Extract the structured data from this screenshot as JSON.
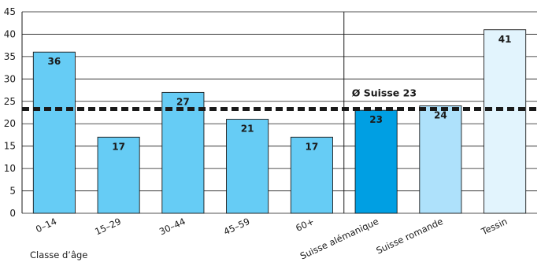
{
  "chart_data": {
    "type": "bar",
    "title": "",
    "ylabel": "",
    "xlabel": "Classe d’âge",
    "ylim": [
      0,
      45
    ],
    "yticks": [
      0,
      5,
      10,
      15,
      20,
      25,
      30,
      35,
      40,
      45
    ],
    "grid": "horizontal",
    "categories": [
      "0–14",
      "15–29",
      "30–44",
      "45–59",
      "60+",
      "Suisse alémanique",
      "Suisse romande",
      "Tessin"
    ],
    "values": [
      36,
      17,
      27,
      21,
      17,
      23,
      24,
      41
    ],
    "bar_colors": [
      "#66ccf5",
      "#66ccf5",
      "#66ccf5",
      "#66ccf5",
      "#66ccf5",
      "#009fe3",
      "#aee1fb",
      "#e2f4fd"
    ],
    "reference_line": {
      "label": "Ø Suisse 23",
      "value": 23.3
    }
  }
}
